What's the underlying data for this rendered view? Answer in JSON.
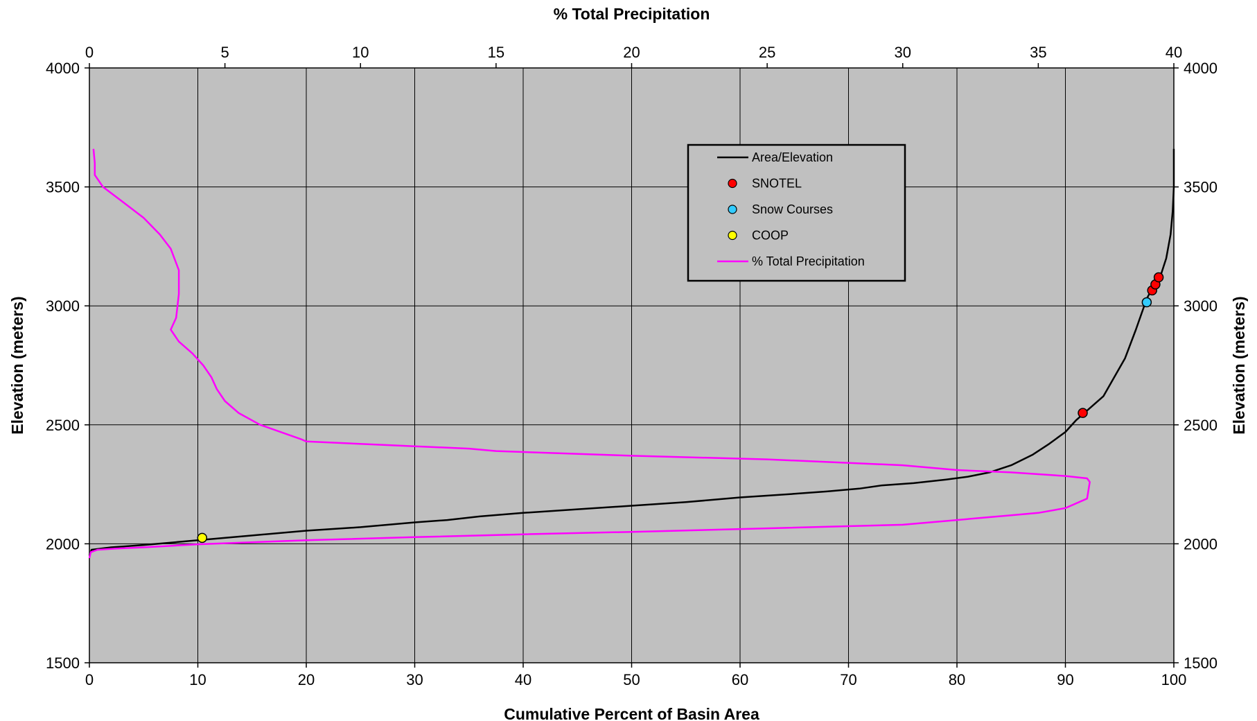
{
  "chart_data": {
    "type": "line",
    "x_bottom": {
      "label": "Cumulative Percent of Basin Area",
      "range": [
        0,
        100
      ],
      "ticks": [
        "0",
        "10",
        "20",
        "30",
        "40",
        "50",
        "60",
        "70",
        "80",
        "90",
        "100"
      ]
    },
    "x_top": {
      "label": "% Total Precipitation",
      "range": [
        0,
        40
      ],
      "ticks": [
        "0",
        "5",
        "10",
        "15",
        "20",
        "25",
        "30",
        "35",
        "40"
      ]
    },
    "y_left": {
      "label": "Elevation (meters)",
      "range": [
        1500,
        4000
      ],
      "ticks": [
        "1500",
        "2000",
        "2500",
        "3000",
        "3500",
        "4000"
      ]
    },
    "y_right": {
      "label": "Elevation (meters)",
      "range": [
        1500,
        4000
      ],
      "ticks": [
        "1500",
        "2000",
        "2500",
        "3000",
        "3500",
        "4000"
      ]
    },
    "grid": true,
    "plot_background": "#c0c0c0",
    "legend_position": "top-right",
    "legend": [
      {
        "label": "Area/Elevation",
        "kind": "line",
        "color": "#000000"
      },
      {
        "label": "SNOTEL",
        "kind": "marker",
        "color": "#ff0000"
      },
      {
        "label": "Snow Courses",
        "kind": "marker",
        "color": "#33ccff"
      },
      {
        "label": "COOP",
        "kind": "marker",
        "color": "#ffff00"
      },
      {
        "label": "% Total Precipitation",
        "kind": "line",
        "color": "#ff00ff"
      }
    ],
    "series": [
      {
        "name": "Area/Elevation",
        "axis": "bottom",
        "color": "#000000",
        "points": [
          [
            0,
            1950
          ],
          [
            0.2,
            1975
          ],
          [
            2,
            1985
          ],
          [
            5,
            1995
          ],
          [
            10,
            2015
          ],
          [
            15,
            2035
          ],
          [
            20,
            2055
          ],
          [
            25,
            2070
          ],
          [
            30,
            2090
          ],
          [
            33,
            2100
          ],
          [
            36,
            2115
          ],
          [
            40,
            2130
          ],
          [
            45,
            2145
          ],
          [
            50,
            2160
          ],
          [
            55,
            2175
          ],
          [
            60,
            2195
          ],
          [
            65,
            2210
          ],
          [
            68,
            2220
          ],
          [
            71,
            2232
          ],
          [
            73,
            2245
          ],
          [
            76,
            2255
          ],
          [
            79,
            2270
          ],
          [
            81,
            2282
          ],
          [
            83,
            2300
          ],
          [
            85,
            2330
          ],
          [
            87,
            2375
          ],
          [
            88.5,
            2420
          ],
          [
            90,
            2470
          ],
          [
            91,
            2520
          ],
          [
            92,
            2560
          ],
          [
            93.5,
            2620
          ],
          [
            94.5,
            2700
          ],
          [
            95.5,
            2780
          ],
          [
            96.5,
            2900
          ],
          [
            97.5,
            3030
          ],
          [
            98.3,
            3100
          ],
          [
            98.8,
            3130
          ],
          [
            99.3,
            3200
          ],
          [
            99.7,
            3300
          ],
          [
            99.9,
            3400
          ],
          [
            100,
            3500
          ],
          [
            100,
            3660
          ]
        ]
      },
      {
        "name": "% Total Precipitation",
        "axis": "top",
        "color": "#ff00ff",
        "points": [
          [
            0,
            1940
          ],
          [
            0.05,
            1965
          ],
          [
            0.3,
            1975
          ],
          [
            1,
            1980
          ],
          [
            2,
            1985
          ],
          [
            4,
            1998
          ],
          [
            8,
            2015
          ],
          [
            12,
            2028
          ],
          [
            16,
            2040
          ],
          [
            20,
            2050
          ],
          [
            25,
            2065
          ],
          [
            30,
            2080
          ],
          [
            31,
            2090
          ],
          [
            32,
            2100
          ],
          [
            33,
            2110
          ],
          [
            34,
            2120
          ],
          [
            35,
            2130
          ],
          [
            36,
            2150
          ],
          [
            36.8,
            2190
          ],
          [
            36.9,
            2260
          ],
          [
            36.8,
            2275
          ],
          [
            36,
            2285
          ],
          [
            34,
            2300
          ],
          [
            32,
            2310
          ],
          [
            30,
            2330
          ],
          [
            25,
            2355
          ],
          [
            20,
            2370
          ],
          [
            15,
            2390
          ],
          [
            14,
            2400
          ],
          [
            12,
            2410
          ],
          [
            8,
            2430
          ],
          [
            7.8,
            2440
          ],
          [
            6.3,
            2500
          ],
          [
            5.5,
            2550
          ],
          [
            5,
            2600
          ],
          [
            4.7,
            2650
          ],
          [
            4.5,
            2700
          ],
          [
            4.2,
            2750
          ],
          [
            3.8,
            2800
          ],
          [
            3.3,
            2850
          ],
          [
            3,
            2900
          ],
          [
            3.2,
            2950
          ],
          [
            3.3,
            3050
          ],
          [
            3.3,
            3150
          ],
          [
            3,
            3240
          ],
          [
            2.6,
            3300
          ],
          [
            2,
            3370
          ],
          [
            1.2,
            3440
          ],
          [
            0.5,
            3500
          ],
          [
            0.2,
            3550
          ],
          [
            0.2,
            3600
          ],
          [
            0.15,
            3660
          ]
        ]
      },
      {
        "name": "SNOTEL",
        "axis": "bottom",
        "kind": "markers",
        "color": "#ff0000",
        "points": [
          [
            91.6,
            2550
          ],
          [
            98,
            3065
          ],
          [
            98.3,
            3090
          ],
          [
            98.6,
            3120
          ]
        ]
      },
      {
        "name": "Snow Courses",
        "axis": "bottom",
        "kind": "markers",
        "color": "#33ccff",
        "points": [
          [
            97.5,
            3015
          ]
        ]
      },
      {
        "name": "COOP",
        "axis": "bottom",
        "kind": "markers",
        "color": "#ffff00",
        "points": [
          [
            10.4,
            2025
          ]
        ]
      }
    ]
  }
}
